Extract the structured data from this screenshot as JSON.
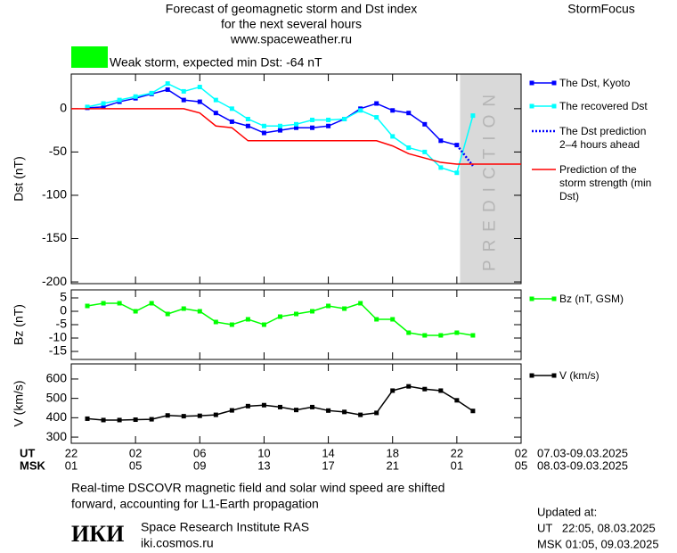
{
  "header": {
    "title_lines": [
      "Forecast of geomagnetic storm and Dst index",
      "for the next several hours",
      "www.spaceweather.ru"
    ],
    "brand": "StormFocus",
    "status": "Weak storm, expected min Dst: -64 nT",
    "status_color": "#00ff00"
  },
  "chart_data": [
    {
      "type": "line",
      "y_label": "Dst (nT)",
      "xlim": [
        0,
        28
      ],
      "ylim": [
        -202,
        40
      ],
      "yticks": [
        0,
        -50,
        -100,
        -150,
        -200
      ],
      "prediction_band": [
        24.2,
        28
      ],
      "band_label": "PREDICTION",
      "series": [
        {
          "name": "The Dst, Kyoto",
          "color": "#0000ff",
          "marker": true,
          "x": [
            1,
            2,
            3,
            4,
            5,
            6,
            7,
            8,
            9,
            10,
            11,
            12,
            13,
            14,
            15,
            16,
            17,
            18,
            19,
            20,
            21,
            22,
            23,
            24
          ],
          "values": [
            1,
            2,
            8,
            12,
            17,
            22,
            10,
            8,
            -5,
            -15,
            -20,
            -28,
            -25,
            -22,
            -22,
            -20,
            -12,
            0,
            6,
            -2,
            -5,
            -18,
            -37,
            -42
          ]
        },
        {
          "name": "The recovered Dst",
          "color": "#00ffff",
          "marker": true,
          "x": [
            1,
            2,
            3,
            4,
            5,
            6,
            7,
            8,
            9,
            10,
            11,
            12,
            13,
            14,
            15,
            16,
            17,
            18,
            19,
            20,
            21,
            22,
            23,
            24,
            25
          ],
          "values": [
            2,
            6,
            10,
            14,
            18,
            29,
            20,
            25,
            10,
            0,
            -12,
            -20,
            -20,
            -18,
            -13,
            -13,
            -12,
            -2,
            -10,
            -32,
            -45,
            -50,
            -68,
            -74,
            -8
          ]
        },
        {
          "name": "The Dst prediction 2–4 hours ahead",
          "color": "#0000ff",
          "dash": true,
          "x": [
            24,
            25
          ],
          "values": [
            -42,
            -66
          ]
        },
        {
          "name": "Prediction of the storm strength (min Dst)",
          "color": "#ff0000",
          "x": [
            0,
            7,
            8,
            9,
            10,
            11,
            19,
            20,
            21,
            22,
            23,
            24,
            28
          ],
          "values": [
            0,
            0,
            -5,
            -20,
            -22,
            -37,
            -37,
            -43,
            -52,
            -57,
            -62,
            -64,
            -64
          ]
        }
      ]
    },
    {
      "type": "line",
      "y_label": "Bz (nT)",
      "xlim": [
        0,
        28
      ],
      "ylim": [
        -18,
        8
      ],
      "yticks": [
        5,
        0,
        -5,
        -10,
        -15
      ],
      "series": [
        {
          "name": "Bz (nT, GSM)",
          "color": "#00ff00",
          "marker": true,
          "x": [
            1,
            2,
            3,
            4,
            5,
            6,
            7,
            8,
            9,
            10,
            11,
            12,
            13,
            14,
            15,
            16,
            17,
            18,
            19,
            20,
            21,
            22,
            23,
            24,
            25
          ],
          "values": [
            2,
            3,
            3,
            0,
            3,
            -1,
            1,
            0,
            -4,
            -5,
            -3,
            -5,
            -2,
            -1,
            0,
            2,
            1,
            3,
            -3,
            -3,
            -8,
            -9,
            -9,
            -8,
            -9
          ]
        }
      ]
    },
    {
      "type": "line",
      "y_label": "V (km/s)",
      "xlim": [
        0,
        28
      ],
      "ylim": [
        268,
        678
      ],
      "yticks": [
        600,
        500,
        400,
        300
      ],
      "series": [
        {
          "name": "V (km/s)",
          "color": "#000000",
          "marker": true,
          "x": [
            1,
            2,
            3,
            4,
            5,
            6,
            7,
            8,
            9,
            10,
            11,
            12,
            13,
            14,
            15,
            16,
            17,
            18,
            19,
            20,
            21,
            22,
            23,
            24,
            25
          ],
          "values": [
            395,
            388,
            388,
            390,
            392,
            412,
            408,
            410,
            415,
            438,
            460,
            465,
            455,
            440,
            455,
            437,
            430,
            415,
            425,
            540,
            562,
            548,
            540,
            490,
            435
          ]
        }
      ]
    }
  ],
  "time_axis": {
    "ut": "UT",
    "msk": "MSK",
    "ut_range": "07.03-09.03.2025",
    "msk_range": "08.03-09.03.2025",
    "ticks": [
      {
        "value": 0,
        "ut": "22",
        "msk": "01"
      },
      {
        "value": 4,
        "ut": "02",
        "msk": "05"
      },
      {
        "value": 8,
        "ut": "06",
        "msk": "09"
      },
      {
        "value": 12,
        "ut": "10",
        "msk": "13"
      },
      {
        "value": 16,
        "ut": "14",
        "msk": "17"
      },
      {
        "value": 20,
        "ut": "18",
        "msk": "21"
      },
      {
        "value": 24,
        "ut": "22",
        "msk": "01"
      },
      {
        "value": 28,
        "ut": "02",
        "msk": "05"
      }
    ]
  },
  "footer": {
    "note_lines": [
      "Real-time DSCOVR magnetic field and solar wind speed are shifted",
      "forward, accounting for L1-Earth propagation"
    ],
    "logo": "ИКИ",
    "institute": "Space Research Institute RAS",
    "site": "iki.cosmos.ru",
    "updated_lines": [
      "Updated at:",
      "UT   22:05, 08.03.2025",
      "MSK 01:05, 09.03.2025"
    ]
  }
}
